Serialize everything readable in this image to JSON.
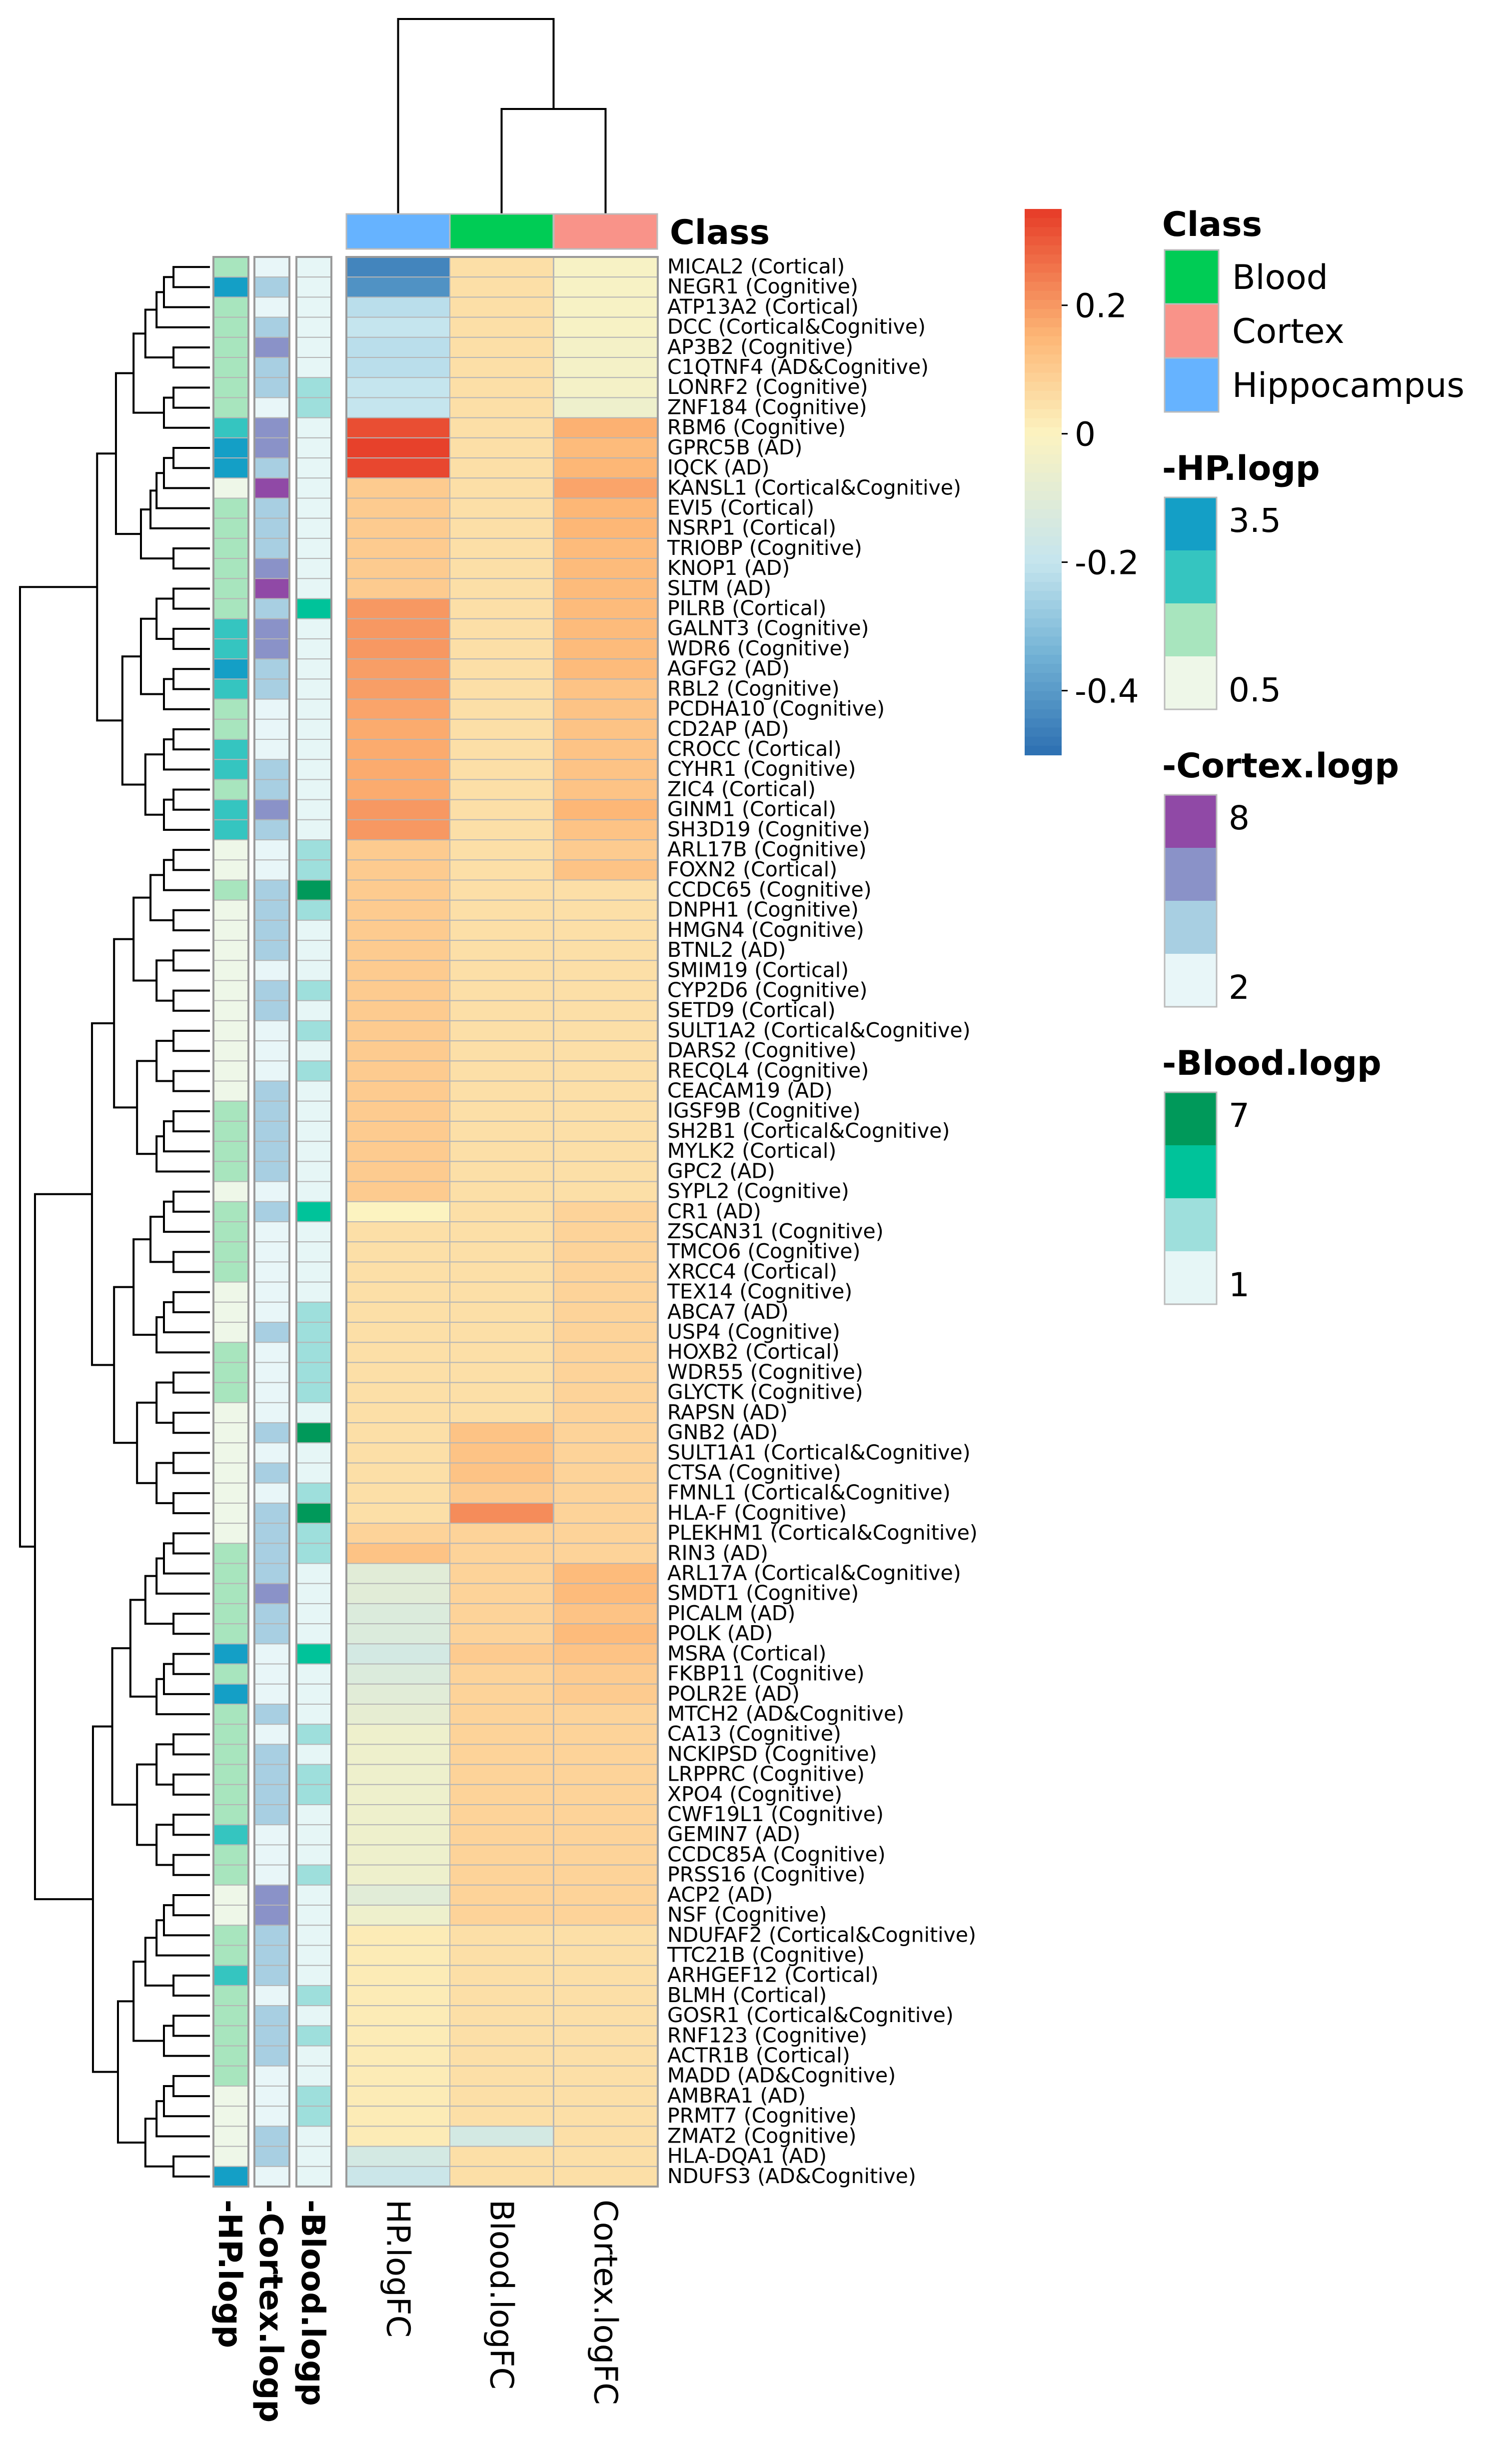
{
  "chart_data": {
    "type": "heatmap",
    "columns": [
      "HP.logFC",
      "Blood.logFC",
      "Cortex.logFC"
    ],
    "column_class": [
      "Hippocampus",
      "Blood",
      "Cortex"
    ],
    "annotation_columns": [
      "-HP.logp",
      "-Cortex.logp",
      "-Blood.logp"
    ],
    "class_label": "Class",
    "rows": [
      "MICAL2 (Cortical)",
      "NEGR1 (Cognitive)",
      "ATP13A2 (Cortical)",
      "DCC (Cortical&Cognitive)",
      "AP3B2 (Cognitive)",
      "C1QTNF4 (AD&Cognitive)",
      "LONRF2 (Cognitive)",
      "ZNF184 (Cognitive)",
      "RBM6 (Cognitive)",
      "GPRC5B (AD)",
      "IQCK (AD)",
      "KANSL1 (Cortical&Cognitive)",
      "EVI5 (Cortical)",
      "NSRP1 (Cortical)",
      "TRIOBP (Cognitive)",
      "KNOP1 (AD)",
      "SLTM (AD)",
      "PILRB (Cortical)",
      "GALNT3 (Cognitive)",
      "WDR6 (Cognitive)",
      "AGFG2 (AD)",
      "RBL2 (Cognitive)",
      "PCDHA10 (Cognitive)",
      "CD2AP (AD)",
      "CROCC (Cortical)",
      "CYHR1 (Cognitive)",
      "ZIC4 (Cortical)",
      "GINM1 (Cortical)",
      "SH3D19 (Cognitive)",
      "ARL17B (Cognitive)",
      "FOXN2 (Cortical)",
      "CCDC65 (Cognitive)",
      "DNPH1 (Cognitive)",
      "HMGN4 (Cognitive)",
      "BTNL2 (AD)",
      "SMIM19 (Cortical)",
      "CYP2D6 (Cognitive)",
      "SETD9 (Cortical)",
      "SULT1A2 (Cortical&Cognitive)",
      "DARS2 (Cognitive)",
      "RECQL4 (Cognitive)",
      "CEACAM19 (AD)",
      "IGSF9B (Cognitive)",
      "SH2B1 (Cortical&Cognitive)",
      "MYLK2 (Cortical)",
      "GPC2 (AD)",
      "SYPL2 (Cognitive)",
      "CR1 (AD)",
      "ZSCAN31 (Cognitive)",
      "TMCO6 (Cognitive)",
      "XRCC4 (Cortical)",
      "TEX14 (Cognitive)",
      "ABCA7 (AD)",
      "USP4 (Cognitive)",
      "HOXB2 (Cortical)",
      "WDR55 (Cognitive)",
      "GLYCTK (Cognitive)",
      "RAPSN (AD)",
      "GNB2 (AD)",
      "SULT1A1 (Cortical&Cognitive)",
      "CTSA (Cognitive)",
      "FMNL1 (Cortical&Cognitive)",
      "HLA-F (Cognitive)",
      "PLEKHM1 (Cortical&Cognitive)",
      "RIN3 (AD)",
      "ARL17A (Cortical&Cognitive)",
      "SMDT1 (Cognitive)",
      "PICALM (AD)",
      "POLK (AD)",
      "MSRA (Cortical)",
      "FKBP11 (Cognitive)",
      "POLR2E (AD)",
      "MTCH2 (AD&Cognitive)",
      "CA13 (Cognitive)",
      "NCKIPSD (Cognitive)",
      "LRPPRC (Cognitive)",
      "XPO4 (Cognitive)",
      "CWF19L1 (Cognitive)",
      "GEMIN7 (AD)",
      "CCDC85A (Cognitive)",
      "PRSS16 (Cognitive)",
      "ACP2 (AD)",
      "NSF (Cognitive)",
      "NDUFAF2 (Cortical&Cognitive)",
      "TTC21B (Cognitive)",
      "ARHGEF12 (Cortical)",
      "BLMH (Cortical)",
      "GOSR1 (Cortical&Cognitive)",
      "RNF123 (Cognitive)",
      "ACTR1B (Cortical)",
      "MADD (AD&Cognitive)",
      "AMBRA1 (AD)",
      "PRMT7 (Cognitive)",
      "ZMAT2 (Cognitive)",
      "HLA-DQA1 (AD)",
      "NDUFS3 (AD&Cognitive)"
    ],
    "hp_logfc": [
      -0.45,
      -0.42,
      -0.22,
      -0.2,
      -0.22,
      -0.22,
      -0.2,
      -0.2,
      0.32,
      0.34,
      0.33,
      0.1,
      0.1,
      0.1,
      0.1,
      0.1,
      0.1,
      0.2,
      0.2,
      0.2,
      0.19,
      0.19,
      0.18,
      0.17,
      0.17,
      0.17,
      0.17,
      0.2,
      0.2,
      0.1,
      0.1,
      0.1,
      0.1,
      0.1,
      0.1,
      0.1,
      0.1,
      0.1,
      0.1,
      0.1,
      0.1,
      0.1,
      0.1,
      0.1,
      0.1,
      0.1,
      0.1,
      0.0,
      0.05,
      0.05,
      0.05,
      0.05,
      0.05,
      0.05,
      0.05,
      0.05,
      0.05,
      0.05,
      0.05,
      0.05,
      0.05,
      0.05,
      0.05,
      0.08,
      0.12,
      -0.1,
      -0.1,
      -0.12,
      -0.12,
      -0.15,
      -0.12,
      -0.1,
      -0.08,
      -0.05,
      -0.05,
      -0.05,
      -0.05,
      -0.05,
      -0.05,
      -0.05,
      -0.05,
      -0.1,
      -0.05,
      0.02,
      0.02,
      0.02,
      0.02,
      0.02,
      0.02,
      0.02,
      0.02,
      0.02,
      0.02,
      0.02,
      -0.15,
      -0.18
    ],
    "blood_logfc": [
      0.05,
      0.05,
      0.05,
      0.05,
      0.05,
      0.05,
      0.05,
      0.05,
      0.05,
      0.05,
      0.05,
      0.05,
      0.05,
      0.05,
      0.05,
      0.05,
      0.05,
      0.05,
      0.05,
      0.05,
      0.05,
      0.05,
      0.05,
      0.05,
      0.05,
      0.05,
      0.05,
      0.05,
      0.05,
      0.05,
      0.05,
      0.05,
      0.05,
      0.05,
      0.05,
      0.05,
      0.05,
      0.05,
      0.05,
      0.05,
      0.05,
      0.05,
      0.05,
      0.05,
      0.05,
      0.05,
      0.05,
      0.05,
      0.05,
      0.05,
      0.05,
      0.05,
      0.05,
      0.05,
      0.05,
      0.05,
      0.05,
      0.05,
      0.12,
      0.12,
      0.12,
      0.1,
      0.22,
      0.08,
      0.08,
      0.08,
      0.08,
      0.08,
      0.08,
      0.1,
      0.08,
      0.08,
      0.08,
      0.08,
      0.08,
      0.08,
      0.08,
      0.08,
      0.08,
      0.08,
      0.08,
      0.08,
      0.08,
      0.05,
      0.05,
      0.05,
      0.05,
      0.05,
      0.05,
      0.05,
      0.05,
      0.05,
      0.05,
      -0.15,
      0.05,
      0.05
    ],
    "cortex_logfc": [
      -0.02,
      -0.02,
      -0.02,
      -0.02,
      -0.03,
      -0.03,
      -0.03,
      -0.05,
      0.16,
      0.14,
      0.15,
      0.18,
      0.15,
      0.15,
      0.14,
      0.14,
      0.14,
      0.14,
      0.14,
      0.14,
      0.14,
      0.12,
      0.12,
      0.12,
      0.12,
      0.12,
      0.12,
      0.15,
      0.12,
      0.1,
      0.12,
      0.05,
      0.05,
      0.05,
      0.05,
      0.05,
      0.05,
      0.05,
      0.05,
      0.05,
      0.05,
      0.05,
      0.05,
      0.05,
      0.05,
      0.05,
      0.05,
      0.08,
      0.08,
      0.08,
      0.08,
      0.08,
      0.08,
      0.08,
      0.08,
      0.08,
      0.08,
      0.08,
      0.08,
      0.08,
      0.08,
      0.08,
      0.08,
      0.08,
      0.08,
      0.14,
      0.14,
      0.12,
      0.14,
      0.12,
      0.1,
      0.1,
      0.08,
      0.08,
      0.08,
      0.08,
      0.08,
      0.08,
      0.08,
      0.08,
      0.08,
      0.08,
      0.08,
      0.05,
      0.05,
      0.05,
      0.05,
      0.05,
      0.05,
      0.05,
      0.05,
      0.05,
      0.05,
      0.05,
      0.05,
      0.05
    ],
    "hp_logp_level": [
      2,
      4,
      2,
      2,
      2,
      2,
      2,
      2,
      3,
      4,
      4,
      1,
      2,
      2,
      2,
      2,
      2,
      2,
      3,
      3,
      4,
      3,
      2,
      2,
      3,
      3,
      2,
      3,
      3,
      1,
      1,
      2,
      1,
      1,
      1,
      1,
      1,
      1,
      1,
      1,
      1,
      1,
      2,
      2,
      2,
      2,
      1,
      2,
      2,
      2,
      2,
      1,
      1,
      1,
      2,
      2,
      2,
      1,
      1,
      1,
      1,
      1,
      1,
      1,
      2,
      2,
      2,
      2,
      2,
      4,
      2,
      4,
      2,
      2,
      2,
      2,
      2,
      2,
      3,
      2,
      2,
      1,
      1,
      2,
      2,
      3,
      2,
      2,
      2,
      2,
      2,
      1,
      1,
      1,
      1,
      4
    ],
    "cortex_logp_level": [
      1,
      2,
      1,
      2,
      3,
      2,
      2,
      1,
      3,
      3,
      2,
      4,
      2,
      2,
      2,
      3,
      4,
      2,
      3,
      3,
      2,
      2,
      1,
      1,
      1,
      2,
      2,
      3,
      2,
      1,
      1,
      2,
      2,
      2,
      2,
      1,
      2,
      2,
      1,
      1,
      1,
      2,
      2,
      2,
      2,
      2,
      1,
      2,
      1,
      1,
      1,
      1,
      1,
      2,
      1,
      1,
      1,
      1,
      2,
      1,
      2,
      1,
      2,
      2,
      2,
      2,
      3,
      2,
      2,
      1,
      1,
      1,
      2,
      1,
      2,
      2,
      2,
      2,
      1,
      1,
      1,
      3,
      3,
      2,
      2,
      2,
      1,
      2,
      2,
      2,
      1,
      1,
      1,
      2,
      2,
      1
    ],
    "blood_logp_level": [
      1,
      1,
      1,
      1,
      1,
      1,
      2,
      2,
      1,
      1,
      1,
      1,
      1,
      1,
      1,
      1,
      1,
      3,
      1,
      1,
      1,
      1,
      1,
      1,
      1,
      1,
      1,
      1,
      1,
      2,
      2,
      4,
      2,
      1,
      1,
      1,
      2,
      1,
      2,
      1,
      2,
      1,
      1,
      1,
      1,
      1,
      1,
      3,
      1,
      1,
      1,
      1,
      2,
      2,
      2,
      2,
      2,
      1,
      4,
      1,
      1,
      2,
      4,
      2,
      2,
      1,
      1,
      1,
      1,
      3,
      1,
      1,
      1,
      2,
      1,
      2,
      2,
      1,
      1,
      1,
      2,
      1,
      1,
      1,
      1,
      1,
      2,
      1,
      2,
      1,
      1,
      2,
      2,
      1,
      1,
      1
    ],
    "color_scale": {
      "min": -0.5,
      "max": 0.35
    },
    "legend": {
      "heat_ticks": [
        "0.2",
        "0",
        "-0.2",
        "-0.4"
      ],
      "heat_tick_values": [
        0.2,
        0,
        -0.2,
        -0.4
      ],
      "class_title": "Class",
      "class_items": [
        {
          "label": "Blood",
          "color": "#00cc55"
        },
        {
          "label": "Cortex",
          "color": "#f99389"
        },
        {
          "label": "Hippocampus",
          "color": "#66b3ff"
        }
      ],
      "hp_title": "-HP.logp",
      "hp_ticks": [
        "3.5",
        "0.5"
      ],
      "cortex_title": "-Cortex.logp",
      "cortex_ticks": [
        "8",
        "2"
      ],
      "blood_title": "-Blood.logp",
      "blood_ticks": [
        "7",
        "1"
      ]
    },
    "palettes": {
      "hp": [
        "#eef7e8",
        "#a8e5be",
        "#35c5c0",
        "#149fc6"
      ],
      "cortex": [
        "#e8f6f8",
        "#a8cfe2",
        "#8a92c8",
        "#9049a6"
      ],
      "blood": [
        "#e6f6f6",
        "#9edfdc",
        "#00c39a",
        "#00995a"
      ]
    }
  }
}
